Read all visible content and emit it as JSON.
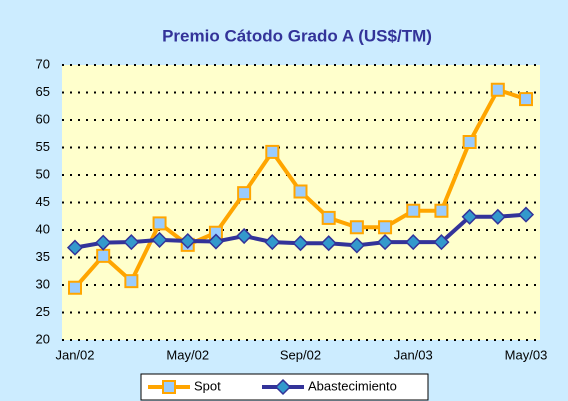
{
  "chart_data": {
    "type": "line",
    "title": "Premio Cátodo Grado A (US$/TM)",
    "categories": [
      "Jan/02",
      null,
      null,
      null,
      "May/02",
      null,
      null,
      null,
      "Sep/02",
      null,
      null,
      null,
      "Jan/03",
      null,
      null,
      null,
      "May/03"
    ],
    "series": [
      {
        "name": "Spot",
        "color": "#ffa500",
        "marker": "square",
        "marker_color": "#99ccff",
        "values": [
          29.5,
          35.3,
          30.7,
          41.2,
          37.3,
          39.5,
          46.7,
          54.2,
          47.0,
          42.2,
          40.5,
          40.5,
          43.5,
          43.5,
          56.0,
          65.5,
          63.8
        ]
      },
      {
        "name": "Abastecimiento",
        "color": "#333399",
        "marker": "diamond",
        "marker_color": "#3399cc",
        "values": [
          36.8,
          37.7,
          37.8,
          38.2,
          38.0,
          37.9,
          38.9,
          37.8,
          37.6,
          37.6,
          37.2,
          37.8,
          37.8,
          37.8,
          42.4,
          42.4,
          42.8
        ]
      }
    ],
    "ylim": [
      20,
      70
    ],
    "yticks": [
      20,
      25,
      30,
      35,
      40,
      45,
      50,
      55,
      60,
      65,
      70
    ],
    "grid": true,
    "legend": "bottom",
    "background": "#ccecff",
    "plot_background": "#ffffcc"
  }
}
